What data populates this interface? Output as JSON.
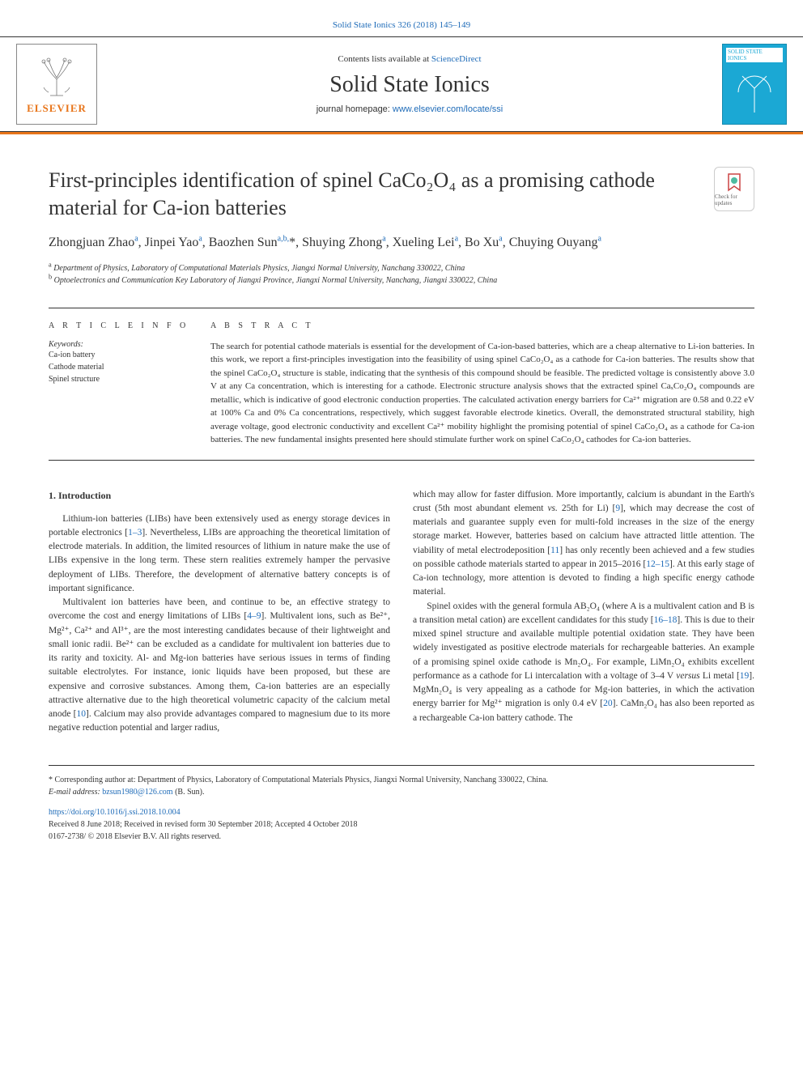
{
  "header": {
    "citation_link": "Solid State Ionics 326 (2018) 145–149",
    "contents_prefix": "Contents lists available at ",
    "contents_link": "ScienceDirect",
    "journal_name": "Solid State Ionics",
    "homepage_label": "journal homepage: ",
    "homepage_url": "www.elsevier.com/locate/ssi",
    "elsevier_brand": "ELSEVIER",
    "cover_title": "SOLID STATE IONICS"
  },
  "article": {
    "title_html": "First-principles identification of spinel CaCo₂O₄ as a promising cathode material for Ca-ion batteries",
    "updates_badge": "Check for updates",
    "authors_html": "Zhongjuan Zhao<sup>a</sup>, Jinpei Yao<sup>a</sup>, Baozhen Sun<sup>a,b,</sup>*, Shuying Zhong<sup>a</sup>, Xueling Lei<sup>a</sup>, Bo Xu<sup>a</sup>, Chuying Ouyang<sup>a</sup>",
    "affiliations": {
      "a": "Department of Physics, Laboratory of Computational Materials Physics, Jiangxi Normal University, Nanchang 330022, China",
      "b": "Optoelectronics and Communication Key Laboratory of Jiangxi Province, Jiangxi Normal University, Nanchang, Jiangxi 330022, China"
    }
  },
  "info": {
    "article_info_label": "A R T I C L E  I N F O",
    "abstract_label": "A B S T R A C T",
    "keywords_label": "Keywords:",
    "keywords": [
      "Ca-ion battery",
      "Cathode material",
      "Spinel structure"
    ]
  },
  "abstract": "The search for potential cathode materials is essential for the development of Ca-ion-based batteries, which are a cheap alternative to Li-ion batteries. In this work, we report a first-principles investigation into the feasibility of using spinel CaCo₂O₄ as a cathode for Ca-ion batteries. The results show that the spinel CaCo₂O₄ structure is stable, indicating that the synthesis of this compound should be feasible. The predicted voltage is consistently above 3.0 V at any Ca concentration, which is interesting for a cathode. Electronic structure analysis shows that the extracted spinel CaₓCo₂O₄ compounds are metallic, which is indicative of good electronic conduction properties. The calculated activation energy barriers for Ca²⁺ migration are 0.58 and 0.22 eV at 100% Ca and 0% Ca concentrations, respectively, which suggest favorable electrode kinetics. Overall, the demonstrated structural stability, high average voltage, good electronic conductivity and excellent Ca²⁺ mobility highlight the promising potential of spinel CaCo₂O₄ as a cathode for Ca-ion batteries. The new fundamental insights presented here should stimulate further work on spinel CaCo₂O₄ cathodes for Ca-ion batteries.",
  "body": {
    "section_1_heading": "1. Introduction",
    "left_paragraphs": [
      "Lithium-ion batteries (LIBs) have been extensively used as energy storage devices in portable electronics [<span class=\"ref-link\">1–3</span>]. Nevertheless, LIBs are approaching the theoretical limitation of electrode materials. In addition, the limited resources of lithium in nature make the use of LIBs expensive in the long term. These stern realities extremely hamper the pervasive deployment of LIBs. Therefore, the development of alternative battery concepts is of important significance.",
      "Multivalent ion batteries have been, and continue to be, an effective strategy to overcome the cost and energy limitations of LIBs [<span class=\"ref-link\">4–9</span>]. Multivalent ions, such as Be²⁺, Mg²⁺, Ca²⁺ and Al³⁺, are the most interesting candidates because of their lightweight and small ionic radii. Be²⁺ can be excluded as a candidate for multivalent ion batteries due to its rarity and toxicity. Al- and Mg-ion batteries have serious issues in terms of finding suitable electrolytes. For instance, ionic liquids have been proposed, but these are expensive and corrosive substances. Among them, Ca-ion batteries are an especially attractive alternative due to the high theoretical volumetric capacity of the calcium metal anode [<span class=\"ref-link\">10</span>]. Calcium may also provide advantages compared to magnesium due to its more negative reduction potential and larger radius,"
    ],
    "right_paragraphs": [
      "which may allow for faster diffusion. More importantly, calcium is abundant in the Earth's crust (5th most abundant element <i>vs.</i> 25th for Li) [<span class=\"ref-link\">9</span>], which may decrease the cost of materials and guarantee supply even for multi-fold increases in the size of the energy storage market. However, batteries based on calcium have attracted little attention. The viability of metal electrodeposition [<span class=\"ref-link\">11</span>] has only recently been achieved and a few studies on possible cathode materials started to appear in 2015–2016 [<span class=\"ref-link\">12–15</span>]. At this early stage of Ca-ion technology, more attention is devoted to finding a high specific energy cathode material.",
      "Spinel oxides with the general formula AB₂O₄ (where A is a multivalent cation and B is a transition metal cation) are excellent candidates for this study [<span class=\"ref-link\">16–18</span>]. This is due to their mixed spinel structure and available multiple potential oxidation state. They have been widely investigated as positive electrode materials for rechargeable batteries. An example of a promising spinel oxide cathode is Mn₂O₄. For example, LiMn₂O₄ exhibits excellent performance as a cathode for Li intercalation with a voltage of 3–4 V <i>versus</i> Li metal [<span class=\"ref-link\">19</span>]. MgMn₂O₄ is very appealing as a cathode for Mg-ion batteries, in which the activation energy barrier for Mg²⁺ migration is only 0.4 eV [<span class=\"ref-link\">20</span>]. CaMn₂O₄ has also been reported as a rechargeable Ca-ion battery cathode. The"
    ]
  },
  "footer": {
    "corresponding": "* Corresponding author at: Department of Physics, Laboratory of Computational Materials Physics, Jiangxi Normal University, Nanchang 330022, China.",
    "email_label": "E-mail address: ",
    "email": "bzsun1980@126.com",
    "email_suffix": " (B. Sun).",
    "doi": "https://doi.org/10.1016/j.ssi.2018.10.004",
    "received": "Received 8 June 2018; Received in revised form 30 September 2018; Accepted 4 October 2018",
    "copyright": "0167-2738/ © 2018 Elsevier B.V. All rights reserved."
  },
  "colors": {
    "link": "#1e6bb8",
    "accent": "#e8751a",
    "cover": "#1ba8d4",
    "text": "#333333"
  }
}
